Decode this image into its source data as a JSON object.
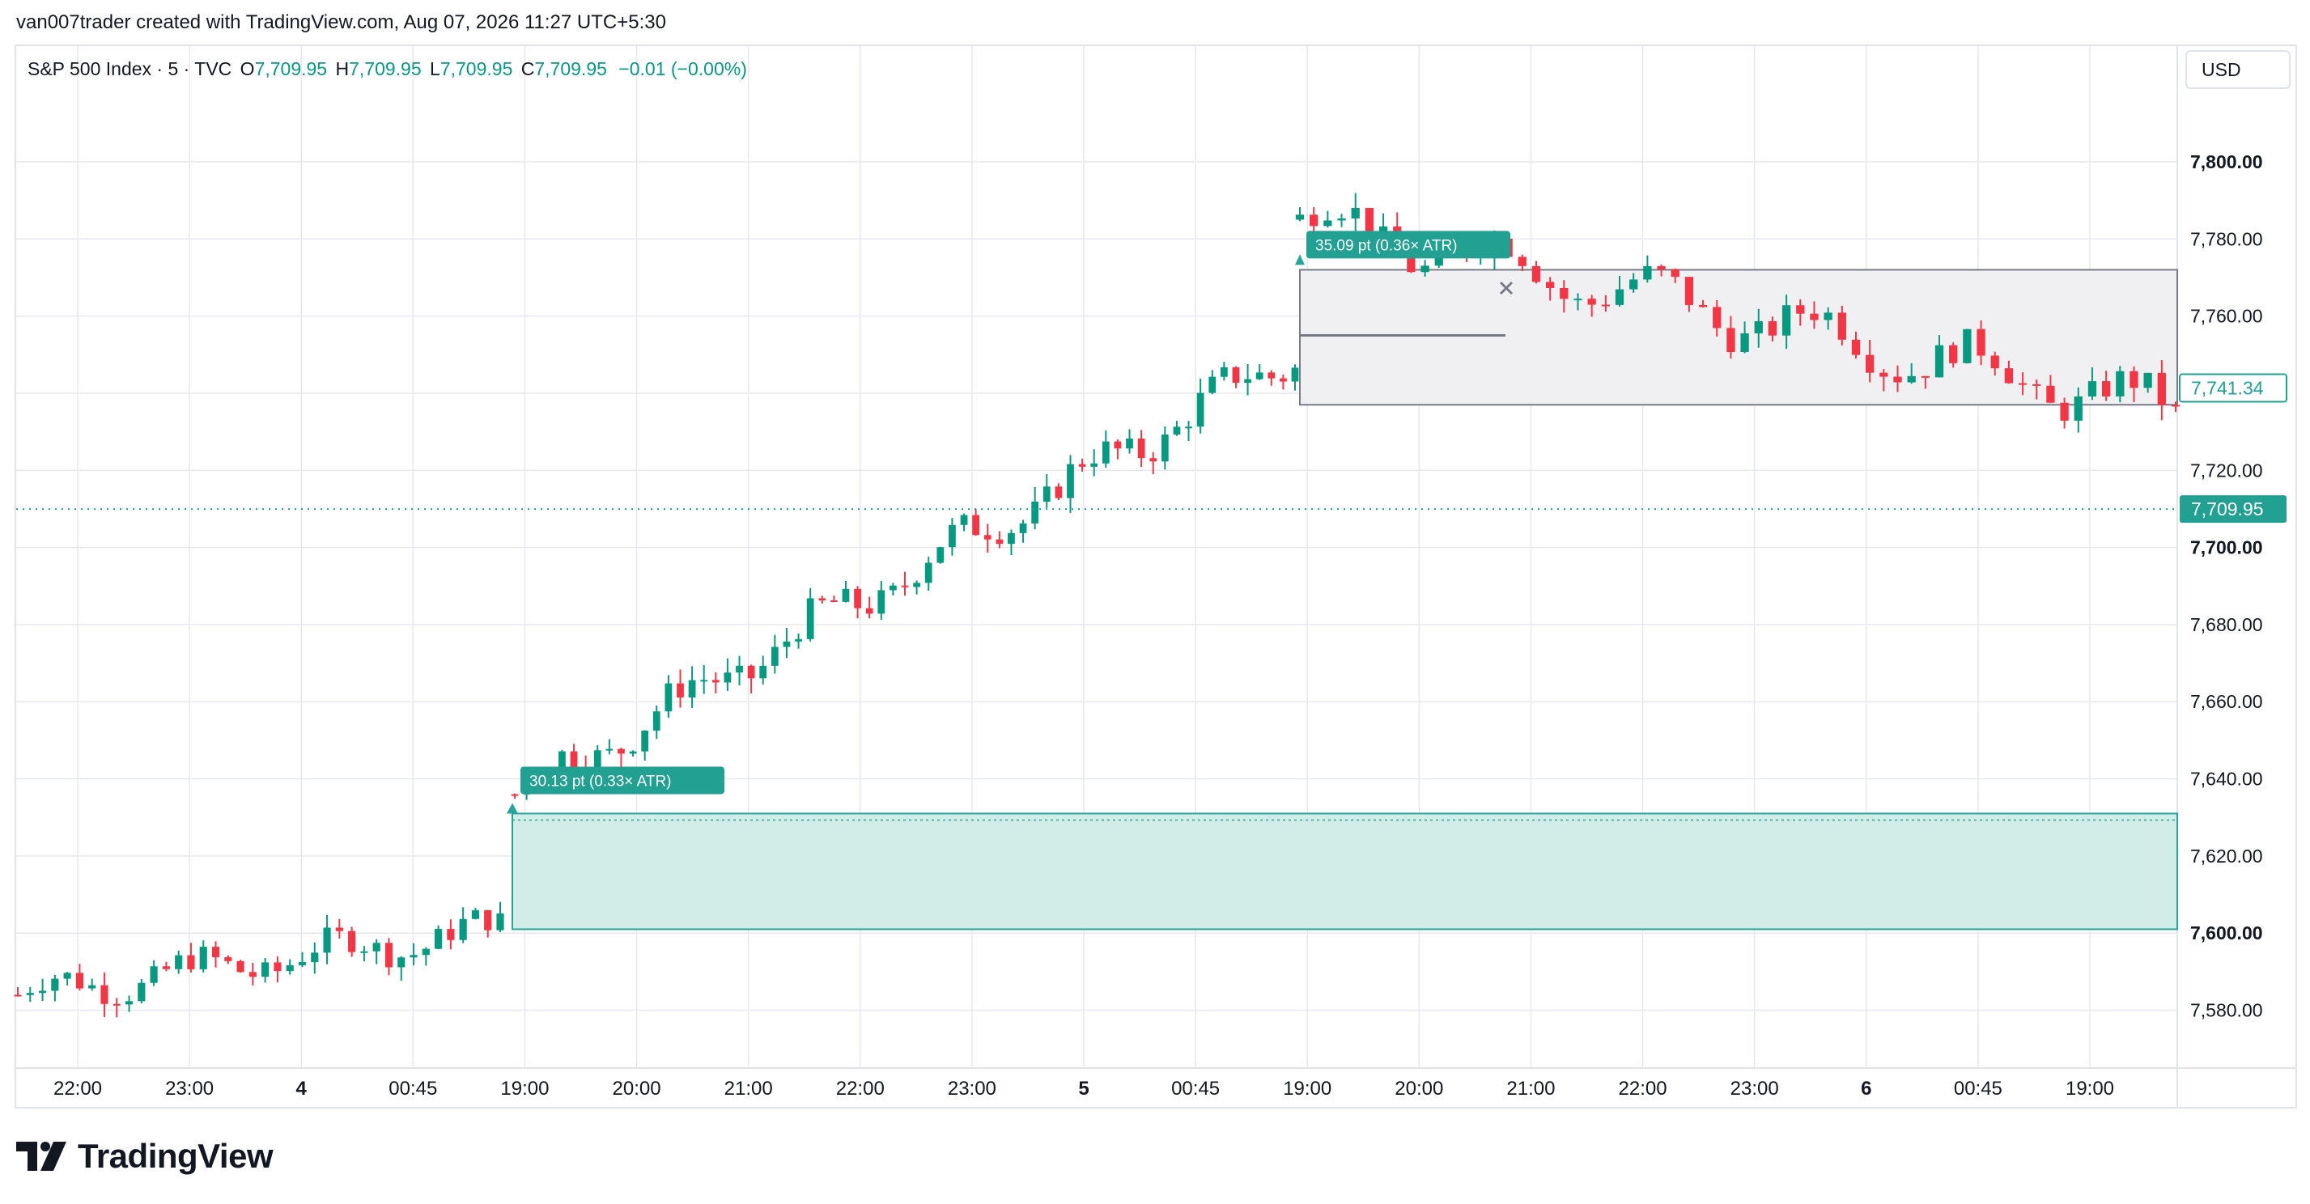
{
  "credit": "van007trader created with TradingView.com, Aug 07, 2026 11:27 UTC+5:30",
  "symbol": {
    "name": "S&P 500 Index · 5 · TVC",
    "open_label": "O",
    "open": "7,709.95",
    "high_label": "H",
    "high": "7,709.95",
    "low_label": "L",
    "low": "7,709.95",
    "close_label": "C",
    "close": "7,709.95",
    "change": "−0.01 (−0.00%)"
  },
  "currency_button": "USD",
  "brand": "TradingView",
  "colors": {
    "up": "#089981",
    "down": "#f23645",
    "grid": "#e6e8ee",
    "zone_green": "#d2ece8",
    "zone_gray": "#f0f0f2",
    "text": "#131722"
  },
  "chart_data": {
    "type": "candlestick",
    "symbol": "S&P 500 Index",
    "interval": "5",
    "y_range": [
      7565,
      7830
    ],
    "y_ticks": [
      "7,800.00",
      "7,780.00",
      "7,760.00",
      "7,740.00",
      "7,720.00",
      "7,700.00",
      "7,680.00",
      "7,660.00",
      "7,640.00",
      "7,620.00",
      "7,600.00",
      "7,580.00"
    ],
    "y_tick_values": [
      7800,
      7780,
      7760,
      7740,
      7720,
      7700,
      7680,
      7660,
      7640,
      7620,
      7600,
      7580
    ],
    "bold_y_ticks": [
      "7,800.00",
      "7,700.00",
      "7,600.00"
    ],
    "x_ticks": [
      "22:00",
      "23:00",
      "4",
      "00:45",
      "19:00",
      "20:00",
      "21:00",
      "22:00",
      "23:00",
      "5",
      "00:45",
      "19:00",
      "20:00",
      "21:00",
      "22:00",
      "23:00",
      "6",
      "00:45",
      "19:00"
    ],
    "bold_x_ticks": [
      "4",
      "5",
      "6"
    ],
    "last_price": "7,709.95",
    "last_price_value": 7709.95,
    "marker_price": "7,741.34",
    "marker_price_value": 7741.34,
    "segments": [
      {
        "count": 40,
        "start": 7584,
        "end": 7601,
        "wobble": 3.5,
        "noise": 3.5
      },
      {
        "count": 67,
        "start": 7636,
        "end": 7750,
        "wobble": 4,
        "noise": 4
      },
      {
        "count": 64,
        "start": 7785,
        "end": 7735,
        "wobble": 6,
        "noise": 4
      }
    ],
    "levels": [
      {
        "label": "30.13 pt (0.33× ATR)",
        "value_pt": 30.13,
        "atr_multiple": 0.33,
        "zone_top": 7631,
        "zone_bottom": 7601,
        "style": "green"
      },
      {
        "label": "35.09 pt (0.36× ATR)",
        "value_pt": 35.09,
        "atr_multiple": 0.36,
        "zone_top": 7772,
        "zone_bottom": 7737,
        "inner_line": 7755,
        "style": "gray"
      }
    ]
  }
}
